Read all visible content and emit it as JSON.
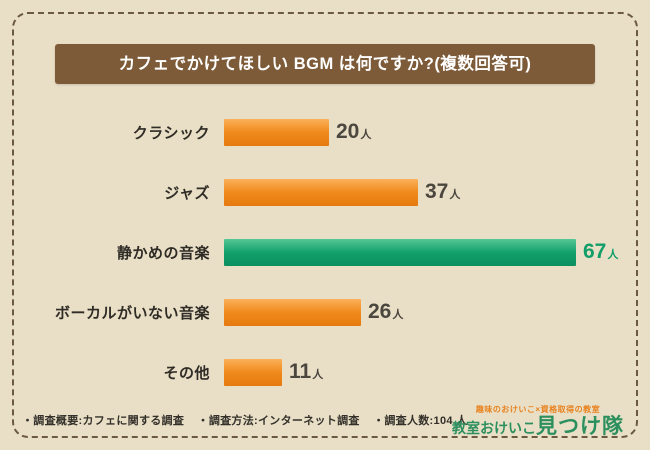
{
  "title": "カフェでかけてほしい BGM は何ですか?(複数回答可)",
  "chart_data": {
    "type": "bar",
    "orientation": "horizontal",
    "title": "カフェでかけてほしい BGM は何ですか?(複数回答可)",
    "categories": [
      "クラシック",
      "ジャズ",
      "静かめの音楽",
      "ボーカルがいない音楽",
      "その他"
    ],
    "values": [
      20,
      37,
      67,
      26,
      11
    ],
    "unit": "人",
    "xlim": [
      0,
      67
    ],
    "highlight_index": 2,
    "legend": "none",
    "grid": false,
    "colors": {
      "bar": "#f08a1c",
      "bar_highlight": "#12a06b",
      "value_text": "#4b463e",
      "value_text_highlight": "#129e68",
      "title_bg": "#7d5b39",
      "background": "#e9dfc7",
      "border": "#6b5a41"
    }
  },
  "footer": {
    "survey_overview": "・調査概要:カフェに関する調査",
    "survey_method": "・調査方法:インターネット調査",
    "survey_count": "・調査人数:104 人"
  },
  "logo": {
    "tagline": "趣味のおけいこ×資格取得の教室",
    "name_small": "教室おけいこ",
    "name_large": "見つけ隊"
  }
}
